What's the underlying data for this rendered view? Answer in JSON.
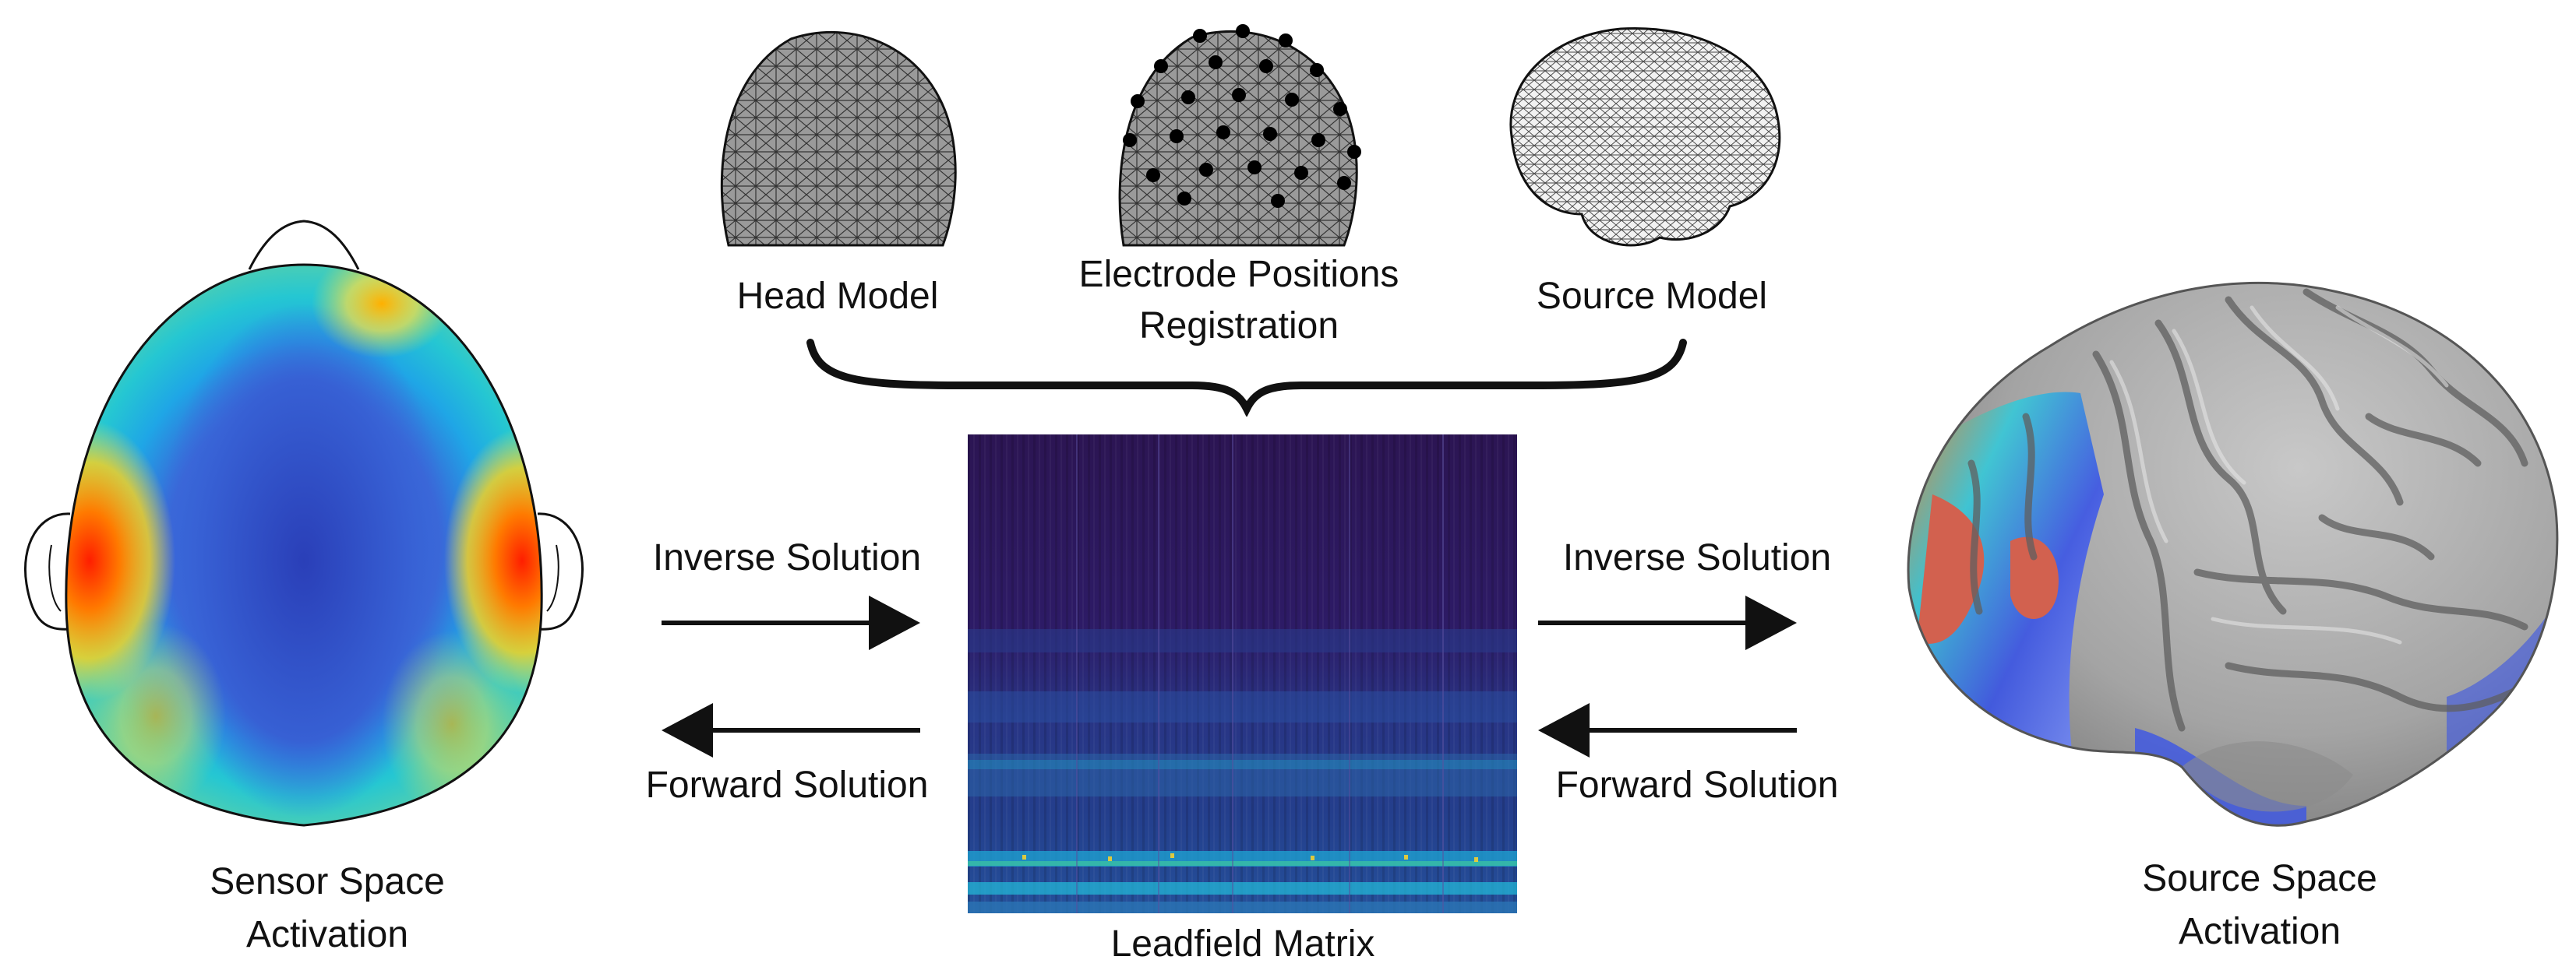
{
  "figure": {
    "sensor_label_line1": "Sensor Space",
    "sensor_label_line2": "Activation",
    "source_label_line1": "Source Space",
    "source_label_line2": "Activation",
    "head_model_label": "Head Model",
    "electrode_label_line1": "Electrode Positions",
    "electrode_label_line2": "Registration",
    "source_model_label": "Source Model",
    "leadfield_label": "Leadfield Matrix",
    "left_arrows": {
      "top": "Inverse Solution",
      "bottom": "Forward Solution"
    },
    "right_arrows": {
      "top": "Inverse Solution",
      "bottom": "Forward Solution"
    }
  },
  "icons": [
    "scalp-topomap",
    "head-mesh",
    "electrode-mesh",
    "brain-mesh",
    "cortex-surface",
    "curly-brace",
    "arrow-right",
    "arrow-left"
  ],
  "colors": {
    "topomap_center": "#2f4fc9",
    "topomap_hot": "#ff2a00",
    "matrix_bg": "#2d1457",
    "cortex": "#a8a8a8"
  }
}
